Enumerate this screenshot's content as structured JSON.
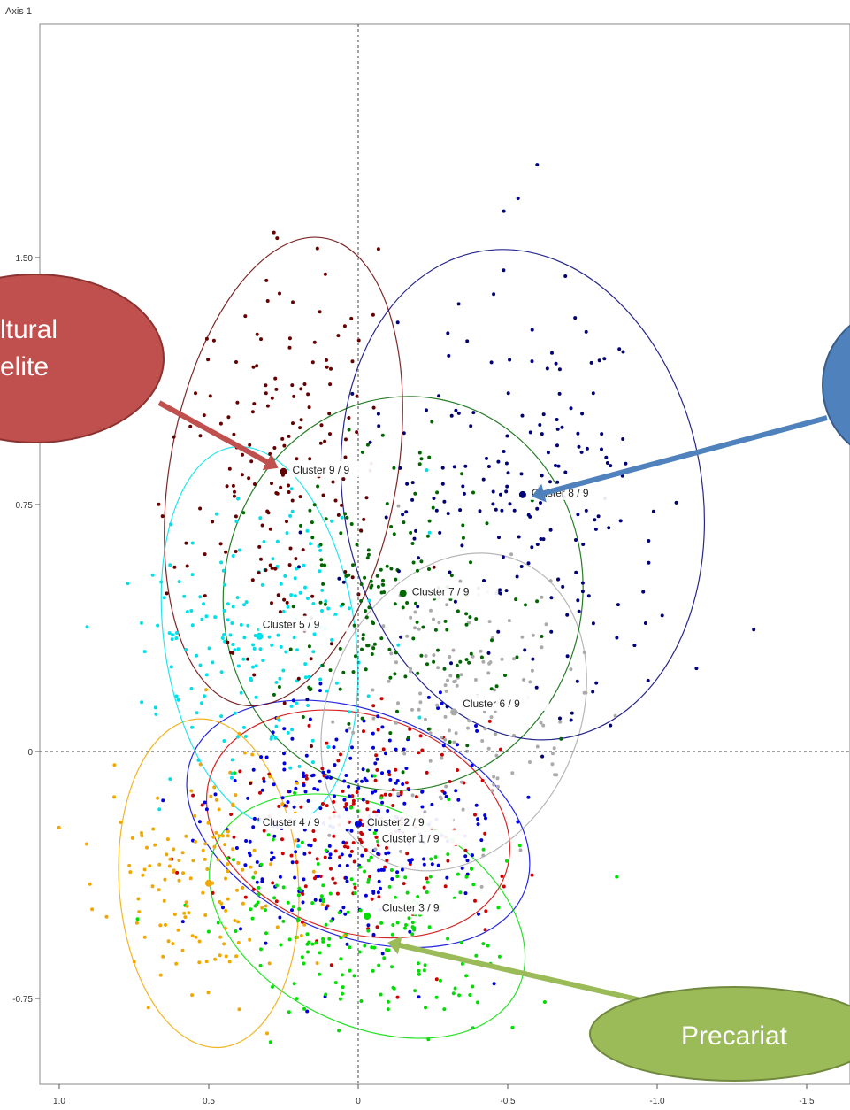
{
  "chart_data": {
    "type": "scatter",
    "title": "",
    "ylabel": "Axis 1",
    "xlabel": "",
    "xlim": [
      1.1,
      -1.6
    ],
    "ylim": [
      -1.03,
      1.85
    ],
    "x_ticks": [
      {
        "value": 1.0,
        "label": "1.0"
      },
      {
        "value": 0.5,
        "label": "0.5"
      },
      {
        "value": 0.0,
        "label": "0"
      },
      {
        "value": -0.5,
        "label": "-0.5"
      },
      {
        "value": -1.0,
        "label": "-1.0"
      },
      {
        "value": -1.5,
        "label": "-1.5"
      }
    ],
    "y_ticks": [
      {
        "value": 1.5,
        "label": "1.50"
      },
      {
        "value": 0.75,
        "label": "0.75"
      },
      {
        "value": 0.0,
        "label": "0"
      },
      {
        "value": -0.75,
        "label": "-0.75"
      }
    ],
    "grid": false,
    "reference_lines": [
      0,
      0
    ],
    "clusters": [
      {
        "label": "Cluster 1 / 9",
        "color": "#cc0000",
        "center": [
          0.0,
          -0.22
        ],
        "spread": [
          0.22,
          0.17
        ],
        "count": 180,
        "ellipse": {
          "rx": 0.52,
          "ry": 0.33,
          "rot": 18
        }
      },
      {
        "label": "Cluster 2 / 9",
        "color": "#0000dd",
        "center": [
          0.0,
          -0.22
        ],
        "spread": [
          0.24,
          0.17
        ],
        "count": 260,
        "ellipse": {
          "rx": 0.6,
          "ry": 0.34,
          "rot": 22
        }
      },
      {
        "label": "Cluster 3 / 9",
        "color": "#00dd00",
        "center": [
          -0.03,
          -0.5
        ],
        "spread": [
          0.24,
          0.17
        ],
        "count": 200,
        "ellipse": {
          "rx": 0.56,
          "ry": 0.33,
          "rot": 26
        }
      },
      {
        "label": "Cluster 4 / 9",
        "color": "#f0a800",
        "center": [
          0.5,
          -0.4
        ],
        "spread": [
          0.17,
          0.2
        ],
        "count": 150,
        "ellipse": {
          "rx": 0.3,
          "ry": 0.5,
          "rot": -4
        }
      },
      {
        "label": "Cluster 5 / 9",
        "color": "#00e0e8",
        "center": [
          0.33,
          0.35
        ],
        "spread": [
          0.2,
          0.22
        ],
        "count": 190,
        "ellipse": {
          "rx": 0.32,
          "ry": 0.58,
          "rot": -8
        }
      },
      {
        "label": "Cluster 6 / 9",
        "color": "#aaaaaa",
        "center": [
          -0.32,
          0.12
        ],
        "spread": [
          0.2,
          0.2
        ],
        "count": 150,
        "ellipse": {
          "rx": 0.42,
          "ry": 0.5,
          "rot": 24
        }
      },
      {
        "label": "Cluster 7 / 9",
        "color": "#006600",
        "center": [
          -0.15,
          0.48
        ],
        "spread": [
          0.2,
          0.22
        ],
        "count": 170,
        "ellipse": {
          "rx": 0.6,
          "ry": 0.6,
          "rot": 10
        }
      },
      {
        "label": "Cluster 8 / 9",
        "color": "#000077",
        "center": [
          -0.55,
          0.78
        ],
        "spread": [
          0.28,
          0.3
        ],
        "count": 200,
        "ellipse": {
          "rx": 0.6,
          "ry": 0.75,
          "rot": -10
        }
      },
      {
        "label": "Cluster 9 / 9",
        "color": "#660000",
        "center": [
          0.25,
          0.85
        ],
        "spread": [
          0.17,
          0.3
        ],
        "count": 170,
        "ellipse": {
          "rx": 0.38,
          "ry": 0.72,
          "rot": 10
        }
      }
    ],
    "cluster_label_positions": [
      {
        "cluster": "Cluster 9 / 9",
        "x": 0.25,
        "y": 0.85
      },
      {
        "cluster": "Cluster 8 / 9",
        "x": -0.55,
        "y": 0.78
      },
      {
        "cluster": "Cluster 7 / 9",
        "x": -0.15,
        "y": 0.48
      },
      {
        "cluster": "Cluster 5 / 9",
        "x": 0.35,
        "y": 0.38
      },
      {
        "cluster": "Cluster 6 / 9",
        "x": -0.32,
        "y": 0.14
      },
      {
        "cluster": "Cluster 4 / 9",
        "x": 0.35,
        "y": -0.22
      },
      {
        "cluster": "Cluster 2 / 9",
        "x": 0.0,
        "y": -0.22
      },
      {
        "cluster": "Cluster 1 / 9",
        "x": -0.05,
        "y": -0.27
      },
      {
        "cluster": "Cluster 3 / 9",
        "x": -0.05,
        "y": -0.48
      }
    ],
    "callouts": [
      {
        "text_lines": [
          "ltural",
          "elite"
        ],
        "fill": "#c0504d",
        "border": "#8b3331",
        "points_to": "Cluster 9 / 9"
      },
      {
        "text_lines": [],
        "fill": "#4f81bd",
        "border": "#385d8a",
        "points_to": "Cluster 8 / 9"
      },
      {
        "text_lines": [
          "Precariat"
        ],
        "fill": "#9bbb59",
        "border": "#71893f",
        "points_to": "Cluster 3 / 9"
      }
    ]
  }
}
